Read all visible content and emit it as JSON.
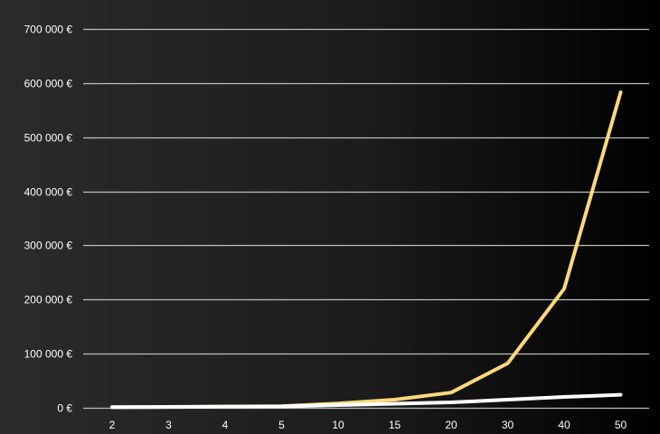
{
  "chart_data": {
    "type": "line",
    "categories": [
      "2",
      "3",
      "4",
      "5",
      "10",
      "15",
      "20",
      "30",
      "40",
      "50"
    ],
    "yticks": [
      {
        "value": 0,
        "label": "0 €"
      },
      {
        "value": 100000,
        "label": "100 000 €"
      },
      {
        "value": 200000,
        "label": "200 000 €"
      },
      {
        "value": 300000,
        "label": "300 000 €"
      },
      {
        "value": 400000,
        "label": "400 000 €"
      },
      {
        "value": 500000,
        "label": "500 000 €"
      },
      {
        "value": 600000,
        "label": "600 000 €"
      },
      {
        "value": 700000,
        "label": "700 000 €"
      }
    ],
    "ylim": [
      0,
      700000
    ],
    "grid": true,
    "legend": "none",
    "title": "",
    "xlabel": "",
    "ylabel": "",
    "series": [
      {
        "color": "#ffd97a",
        "values": [
          1100,
          1700,
          2300,
          3000,
          8000,
          15000,
          28000,
          82000,
          220000,
          583000
        ]
      },
      {
        "color": "#ffffff",
        "values": [
          1000,
          1500,
          2000,
          2500,
          5000,
          7500,
          10000,
          15000,
          20000,
          24000
        ]
      }
    ]
  }
}
